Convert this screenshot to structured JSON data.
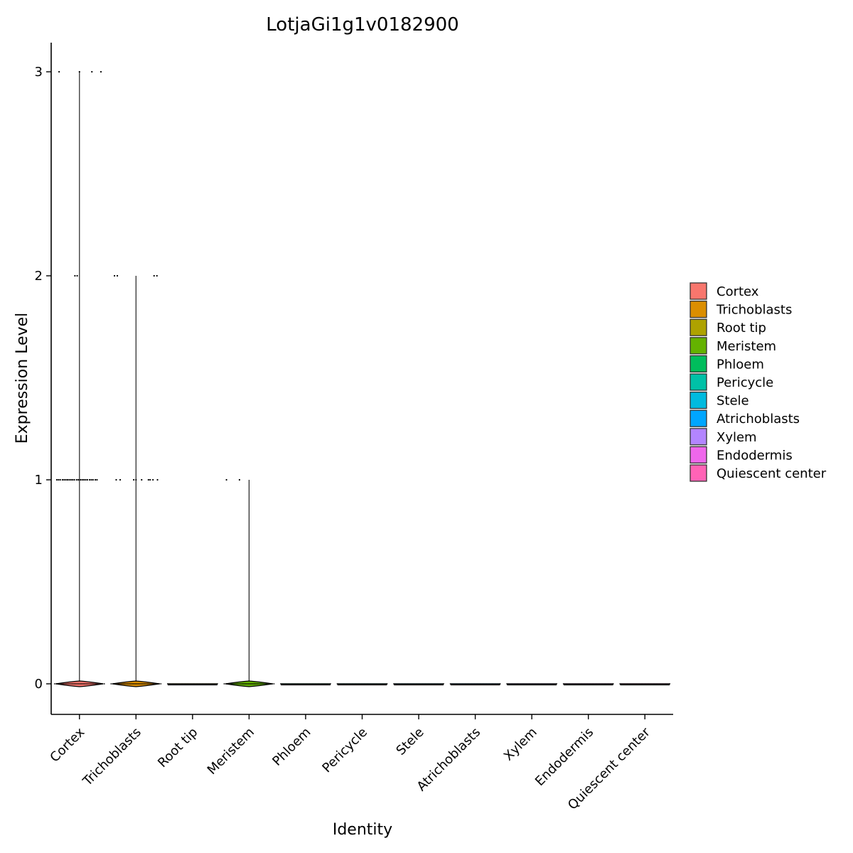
{
  "chart_data": {
    "type": "violin",
    "title": "LotjaGi1g1v0182900",
    "xlabel": "Identity",
    "ylabel": "Expression Level",
    "ylim": [
      -0.15,
      3.15
    ],
    "yticks": [
      0,
      1,
      2,
      3
    ],
    "categories": [
      "Cortex",
      "Trichoblasts",
      "Root tip",
      "Meristem",
      "Phloem",
      "Pericycle",
      "Stele",
      "Atrichoblasts",
      "Xylem",
      "Endodermis",
      "Quiescent center"
    ],
    "max_values": [
      3,
      2,
      0,
      1,
      0,
      0,
      0,
      0,
      0,
      0,
      0
    ],
    "legend": {
      "position": "right",
      "entries": [
        {
          "label": "Cortex",
          "color": "#F8766D"
        },
        {
          "label": "Trichoblasts",
          "color": "#DB8E00"
        },
        {
          "label": "Root tip",
          "color": "#AEA200"
        },
        {
          "label": "Meristem",
          "color": "#64B200"
        },
        {
          "label": "Phloem",
          "color": "#00BD5C"
        },
        {
          "label": "Pericycle",
          "color": "#00C1A7"
        },
        {
          "label": "Stele",
          "color": "#00BADE"
        },
        {
          "label": "Atrichoblasts",
          "color": "#00A6FF"
        },
        {
          "label": "Xylem",
          "color": "#B385FF"
        },
        {
          "label": "Endodermis",
          "color": "#EF67EB"
        },
        {
          "label": "Quiescent center",
          "color": "#FF63B6"
        }
      ]
    },
    "points": [
      {
        "category": "Cortex",
        "level": 3,
        "offsets": [
          -0.36,
          0.0,
          0.22,
          0.38
        ]
      },
      {
        "category": "Cortex",
        "level": 2,
        "offsets": [
          -0.08,
          -0.04
        ]
      },
      {
        "category": "Cortex",
        "level": 1,
        "offsets": [
          -0.4,
          -0.37,
          -0.34,
          -0.3,
          -0.27,
          -0.24,
          -0.21,
          -0.18,
          -0.15,
          -0.12,
          -0.09,
          -0.05,
          -0.02,
          0.02,
          0.05,
          0.08,
          0.11,
          0.14,
          0.18,
          0.21,
          0.24,
          0.28,
          0.31
        ]
      },
      {
        "category": "Trichoblasts",
        "level": 2,
        "offsets": [
          -0.38,
          -0.33,
          0.32,
          0.37
        ]
      },
      {
        "category": "Trichoblasts",
        "level": 1,
        "offsets": [
          -0.35,
          -0.28,
          -0.04,
          0.0,
          0.1,
          0.22,
          0.25,
          0.3,
          0.38
        ]
      },
      {
        "category": "Meristem",
        "level": 1,
        "offsets": [
          -0.4,
          -0.17
        ]
      }
    ]
  }
}
